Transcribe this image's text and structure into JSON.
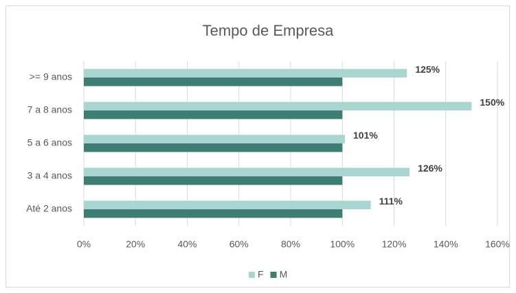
{
  "chart_data": {
    "type": "hbar",
    "title": "Tempo de Empresa",
    "categories": [
      ">= 9 anos",
      "7 a 8 anos",
      "5 a 6 anos",
      "3 a 4 anos",
      "Até 2 anos"
    ],
    "series": [
      {
        "name": "F",
        "color": "#a9d6d0",
        "values": [
          125,
          150,
          101,
          126,
          111
        ],
        "value_labels": [
          "125%",
          "150%",
          "101%",
          "126%",
          "111%"
        ]
      },
      {
        "name": "M",
        "color": "#3e7d74",
        "values": [
          100,
          100,
          100,
          100,
          100
        ]
      }
    ],
    "xlim": [
      0,
      160
    ],
    "xticks": [
      {
        "value": 0,
        "label": "0%"
      },
      {
        "value": 20,
        "label": "20%"
      },
      {
        "value": 40,
        "label": "40%"
      },
      {
        "value": 60,
        "label": "60%"
      },
      {
        "value": 80,
        "label": "80%"
      },
      {
        "value": 100,
        "label": "100%"
      },
      {
        "value": 120,
        "label": "120%"
      },
      {
        "value": 140,
        "label": "140%"
      },
      {
        "value": 160,
        "label": "160%"
      }
    ],
    "grid": true,
    "legend": "bottom"
  }
}
